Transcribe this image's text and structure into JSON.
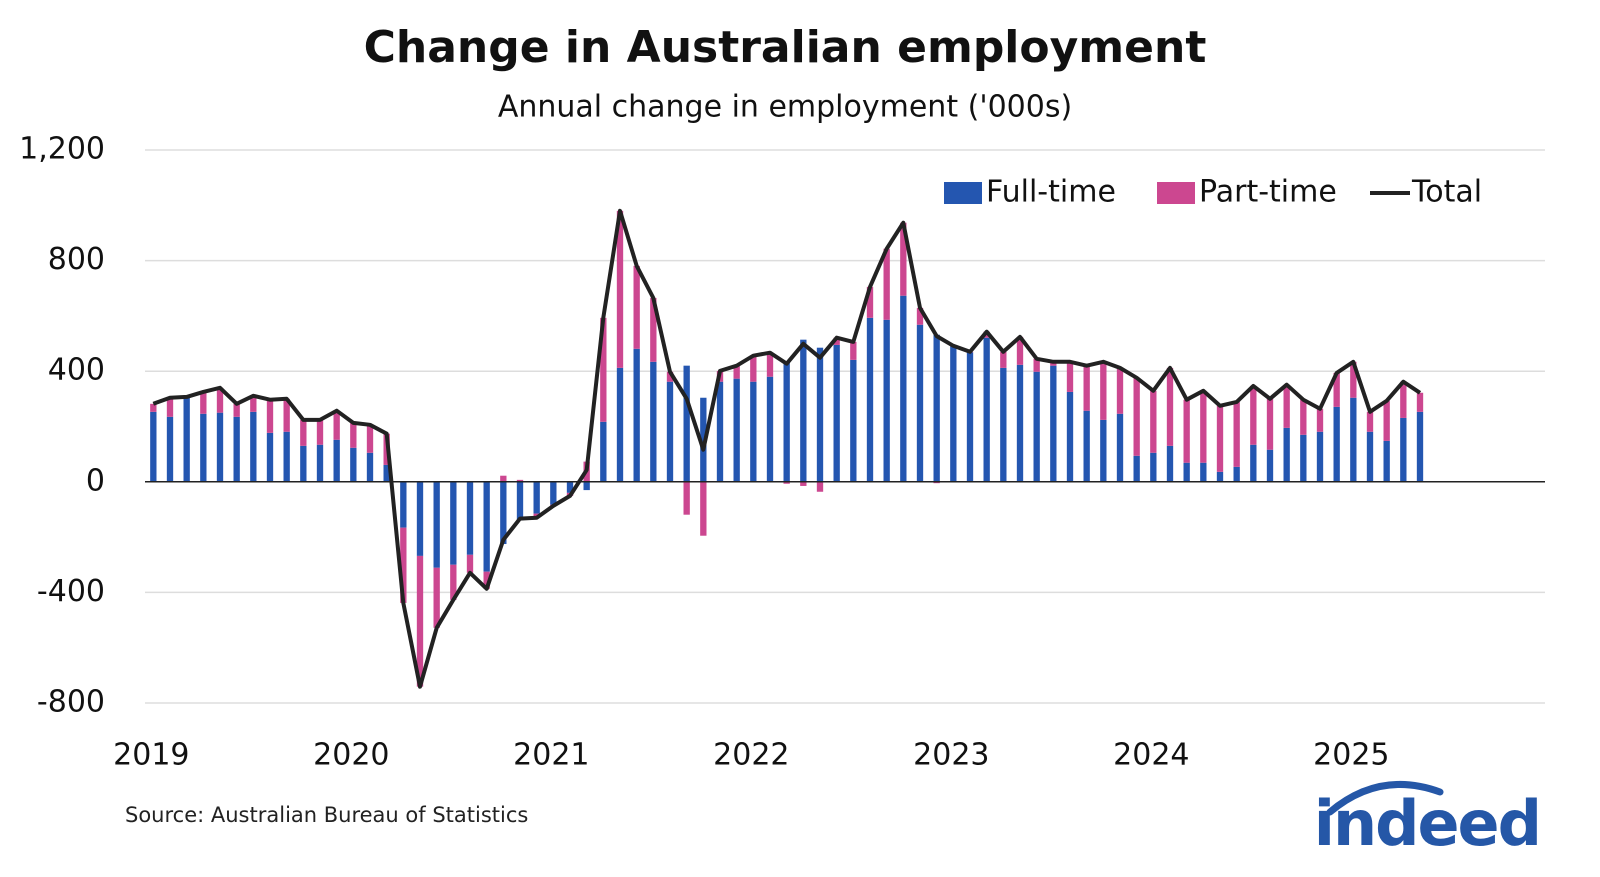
{
  "chart_data": {
    "type": "stacked_bar_line",
    "title": "Change in Australian employment",
    "subtitle": "Annual change in employment ('000s)",
    "source": "Source: Australian Bureau of Statistics",
    "logo": "indeed",
    "categories": [
      "2019",
      null,
      null,
      null,
      null,
      null,
      null,
      null,
      null,
      null,
      null,
      null,
      "2020",
      null,
      null,
      null,
      null,
      null,
      null,
      null,
      null,
      null,
      null,
      null,
      "2021",
      null,
      null,
      null,
      null,
      null,
      null,
      null,
      null,
      null,
      null,
      null,
      "2022",
      null,
      null,
      null,
      null,
      null,
      null,
      null,
      null,
      null,
      null,
      null,
      "2023",
      null,
      null,
      null,
      null,
      null,
      null,
      null,
      null,
      null,
      null,
      null,
      "2024",
      null,
      null,
      null,
      null,
      null,
      null,
      null,
      null,
      null,
      null,
      null,
      "2025",
      null,
      null,
      null,
      null,
      null,
      null,
      null,
      null,
      null,
      null,
      null
    ],
    "series": [
      {
        "name": "Full-time",
        "color": "#2456b0",
        "kind": "bar",
        "values": [
          253,
          235,
          304,
          246,
          250,
          235,
          253,
          177,
          181,
          130,
          134,
          152,
          123,
          105,
          61,
          -166,
          -268,
          -311,
          -300,
          -264,
          -325,
          -225,
          -140,
          -115,
          -83,
          -40,
          -30,
          217,
          412,
          481,
          434,
          362,
          420,
          304,
          362,
          373,
          362,
          380,
          434,
          514,
          485,
          495,
          441,
          593,
          586,
          673,
          568,
          532,
          490,
          468,
          521,
          412,
          423,
          398,
          420,
          325,
          257,
          224,
          246,
          94,
          105,
          130,
          69,
          69,
          36,
          54,
          134,
          116,
          195,
          170,
          181,
          271,
          304,
          181,
          148,
          231,
          253,
          null,
          null,
          null,
          null,
          null,
          null,
          null
        ]
      },
      {
        "name": "Part-time",
        "color": "#cc4790",
        "kind": "bar",
        "values": [
          29,
          69,
          3,
          79,
          90,
          47,
          58,
          120,
          119,
          94,
          90,
          105,
          90,
          101,
          113,
          -272,
          -473,
          -217,
          -127,
          -65,
          -62,
          22,
          7,
          -15,
          -4,
          -11,
          73,
          376,
          568,
          300,
          231,
          36,
          -119,
          -195,
          39,
          47,
          94,
          87,
          -7,
          -15,
          -36,
          26,
          65,
          112,
          257,
          264,
          61,
          -5,
          2,
          2,
          22,
          58,
          101,
          47,
          14,
          109,
          163,
          210,
          166,
          282,
          224,
          282,
          228,
          260,
          239,
          235,
          213,
          184,
          156,
          127,
          83,
          123,
          130,
          72,
          145,
          131,
          69,
          null,
          null,
          null,
          null,
          null,
          null,
          null
        ]
      },
      {
        "name": "Total",
        "color": "#222222",
        "kind": "line",
        "values": [
          282,
          304,
          307,
          325,
          340,
          282,
          311,
          297,
          300,
          224,
          224,
          257,
          213,
          206,
          174,
          -438,
          -741,
          -528,
          -427,
          -329,
          -387,
          -210,
          -133,
          -130,
          -87,
          -51,
          43,
          593,
          980,
          781,
          665,
          398,
          300,
          116,
          401,
          420,
          456,
          467,
          427,
          499,
          449,
          521,
          506,
          705,
          843,
          937,
          629,
          527,
          492,
          470,
          543,
          470,
          524,
          445,
          434,
          434,
          420,
          434,
          412,
          376,
          329,
          412,
          297,
          329,
          275,
          289,
          347,
          300,
          351,
          297,
          264,
          394,
          434,
          253,
          293,
          362,
          322,
          null,
          null,
          null,
          null,
          null,
          null,
          null
        ]
      }
    ],
    "ylim": [
      -800,
      1200
    ],
    "yticks": [
      -800,
      -400,
      0,
      400,
      800,
      {
        "value": 1200,
        "label": "1,200"
      }
    ],
    "grid": true,
    "legend": "upper right"
  }
}
